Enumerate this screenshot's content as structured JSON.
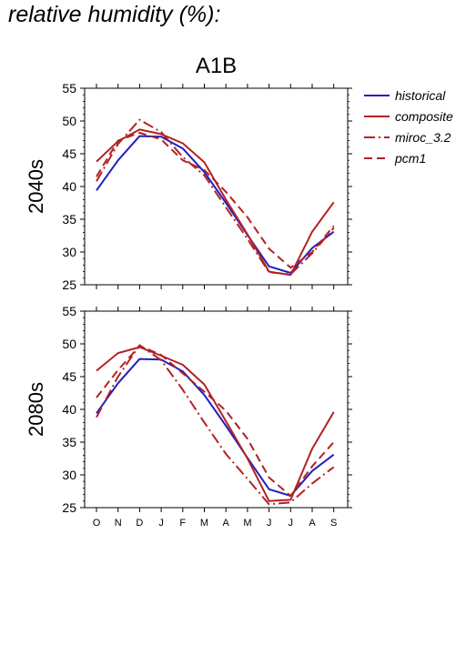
{
  "page_title": "relative humidity (%):",
  "chart_data": {
    "type": "line",
    "scenario": "A1B",
    "categories": [
      "O",
      "N",
      "D",
      "J",
      "F",
      "M",
      "A",
      "M",
      "J",
      "J",
      "A",
      "S"
    ],
    "ylim": [
      25,
      55
    ],
    "yticks": [
      25,
      30,
      35,
      40,
      45,
      50,
      55
    ],
    "legend_position": "top-right-outside",
    "legend": [
      {
        "name": "historical",
        "color": "#2020c0",
        "dash": "solid"
      },
      {
        "name": "composite",
        "color": "#b22222",
        "dash": "solid"
      },
      {
        "name": "miroc_3.2",
        "color": "#b22222",
        "dash": "dashdot"
      },
      {
        "name": "pcm1",
        "color": "#b22222",
        "dash": "dashed"
      }
    ],
    "panels": [
      {
        "label": "2040s",
        "series": [
          {
            "name": "historical",
            "values": [
              39.4,
              44.0,
              47.7,
              47.6,
              45.8,
              42.2,
              37.5,
              32.6,
              27.8,
              26.8,
              30.6,
              33.1
            ]
          },
          {
            "name": "composite",
            "values": [
              43.8,
              46.9,
              48.7,
              48.0,
              46.6,
              43.7,
              38.0,
              32.7,
              27.0,
              26.5,
              33.1,
              37.6
            ]
          },
          {
            "name": "miroc_3.2",
            "values": [
              40.8,
              46.5,
              50.2,
              48.3,
              44.5,
              41.7,
              36.8,
              32.0,
              26.9,
              26.6,
              29.8,
              33.7
            ]
          },
          {
            "name": "pcm1",
            "values": [
              41.5,
              47.0,
              48.2,
              47.2,
              44.0,
              42.5,
              39.2,
              35.3,
              30.5,
              27.6,
              30.0,
              34.0
            ]
          }
        ]
      },
      {
        "label": "2080s",
        "series": [
          {
            "name": "historical",
            "values": [
              39.4,
              44.0,
              47.7,
              47.6,
              45.8,
              42.2,
              37.5,
              32.6,
              27.8,
              26.8,
              30.6,
              33.1
            ]
          },
          {
            "name": "composite",
            "values": [
              45.9,
              48.6,
              49.5,
              48.2,
              46.8,
              43.8,
              38.2,
              32.5,
              26.0,
              26.2,
              34.0,
              39.6
            ]
          },
          {
            "name": "miroc_3.2",
            "values": [
              38.8,
              45.0,
              49.8,
              47.5,
              43.0,
              38.0,
              33.2,
              29.4,
              25.5,
              25.8,
              28.7,
              31.2
            ]
          },
          {
            "name": "pcm1",
            "values": [
              41.8,
              46.0,
              49.7,
              48.3,
              45.5,
              42.7,
              39.8,
              35.5,
              29.6,
              26.8,
              31.3,
              35.0
            ]
          }
        ]
      }
    ]
  }
}
